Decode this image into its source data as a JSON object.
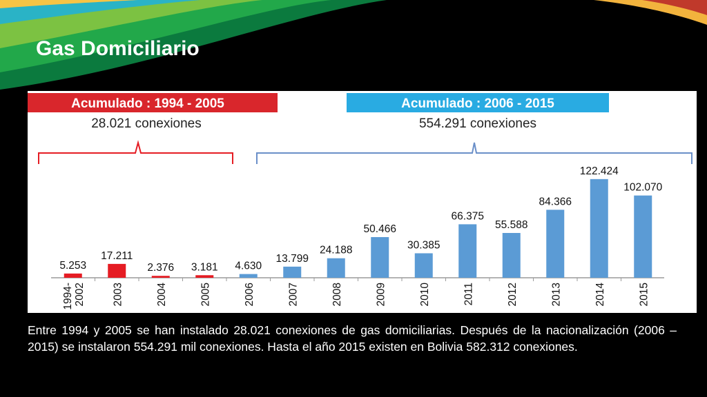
{
  "slide": {
    "title": "Gas Domiciliario",
    "body": "Entre 1994 y 2005 se han instalado 28.021 conexiones de gas domiciliarias. Después de la nacionalización (2006 – 2015) se instalaron 554.291 mil conexiones. Hasta el año 2015 existen en Bolivia 582.312 conexiones."
  },
  "colors": {
    "background": "#000000",
    "period1": "#e51c23",
    "period2": "#5b9bd5",
    "banner1": "#d9262c",
    "banner2": "#29abe2"
  },
  "chart_data": {
    "type": "bar",
    "categories": [
      "1994-2002",
      "2003",
      "2004",
      "2005",
      "2006",
      "2007",
      "2008",
      "2009",
      "2010",
      "2011",
      "2012",
      "2013",
      "2014",
      "2015"
    ],
    "values": [
      5253,
      17211,
      2376,
      3181,
      4630,
      13799,
      24188,
      50466,
      30385,
      66375,
      55588,
      84366,
      122424,
      102070
    ],
    "value_labels": [
      "5.253",
      "17.211",
      "2.376",
      "3.181",
      "4.630",
      "13.799",
      "24.188",
      "50.466",
      "30.385",
      "66.375",
      "55.588",
      "84.366",
      "122.424",
      "102.070"
    ],
    "period": [
      1,
      1,
      1,
      1,
      2,
      2,
      2,
      2,
      2,
      2,
      2,
      2,
      2,
      2
    ],
    "ylim": [
      0,
      130000
    ],
    "grid": false,
    "groups": [
      {
        "title": "Acumulado : 1994 - 2005",
        "subtitle": "28.021 conexiones"
      },
      {
        "title": "Acumulado : 2006 - 2015",
        "subtitle": "554.291 conexiones"
      }
    ]
  }
}
